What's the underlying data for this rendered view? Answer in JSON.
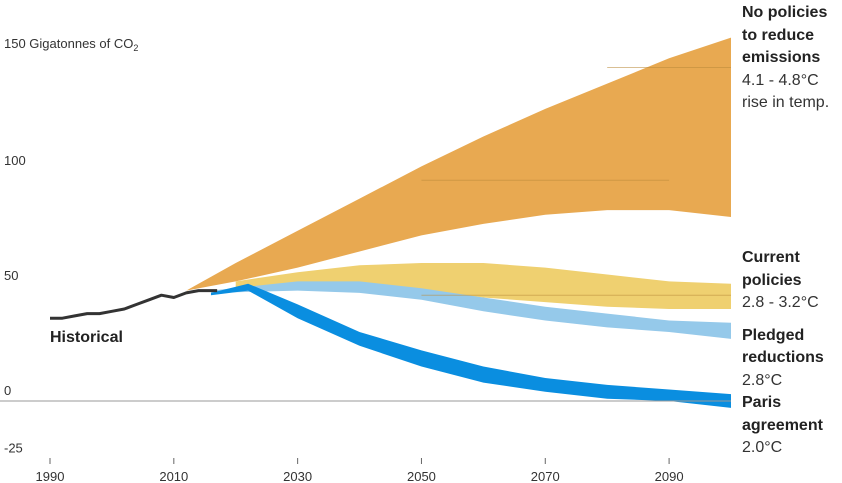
{
  "chart_data": {
    "type": "area",
    "ylabel_main": "150 Gigatonnes of CO",
    "ylabel_sub": "2",
    "x_ticks": [
      1990,
      2010,
      2030,
      2050,
      2070,
      2090
    ],
    "y_ticks": [
      {
        "value": 100,
        "label": "100"
      },
      {
        "value": 50,
        "label": "50"
      },
      {
        "value": 0,
        "label": "0"
      },
      {
        "value": -25,
        "label": "-25"
      }
    ],
    "xlim": [
      1990,
      2100
    ],
    "ylim": [
      -25,
      158
    ],
    "historical": {
      "name": "Historical",
      "color": "#333333",
      "points": [
        [
          1990,
          36
        ],
        [
          1992,
          36
        ],
        [
          1994,
          37
        ],
        [
          1996,
          38
        ],
        [
          1998,
          38
        ],
        [
          2000,
          39
        ],
        [
          2002,
          40
        ],
        [
          2004,
          42
        ],
        [
          2006,
          44
        ],
        [
          2008,
          46
        ],
        [
          2010,
          45
        ],
        [
          2012,
          47
        ],
        [
          2014,
          48
        ],
        [
          2017,
          48
        ]
      ]
    },
    "bands": [
      {
        "name": "No policies",
        "color": "#E8A951",
        "upper": [
          [
            2012,
            48
          ],
          [
            2020,
            60
          ],
          [
            2030,
            74
          ],
          [
            2040,
            88
          ],
          [
            2050,
            102
          ],
          [
            2060,
            115
          ],
          [
            2070,
            127
          ],
          [
            2080,
            138
          ],
          [
            2090,
            149
          ],
          [
            2100,
            158
          ]
        ],
        "lower": [
          [
            2012,
            48
          ],
          [
            2020,
            52
          ],
          [
            2030,
            58
          ],
          [
            2040,
            65
          ],
          [
            2050,
            72
          ],
          [
            2060,
            77
          ],
          [
            2070,
            81
          ],
          [
            2080,
            83
          ],
          [
            2090,
            83
          ],
          [
            2100,
            80
          ]
        ],
        "lines": [
          [
            2050,
            96
          ],
          [
            2090,
            96
          ],
          [
            2080,
            145
          ],
          [
            2100,
            145
          ]
        ]
      },
      {
        "name": "Current policies",
        "color": "#EFD070",
        "upper": [
          [
            2020,
            52
          ],
          [
            2030,
            56
          ],
          [
            2040,
            59
          ],
          [
            2050,
            60
          ],
          [
            2060,
            60
          ],
          [
            2070,
            58
          ],
          [
            2080,
            55
          ],
          [
            2090,
            52
          ],
          [
            2100,
            51
          ]
        ],
        "lower": [
          [
            2020,
            49
          ],
          [
            2030,
            50
          ],
          [
            2040,
            50
          ],
          [
            2050,
            48
          ],
          [
            2060,
            45
          ],
          [
            2070,
            43
          ],
          [
            2080,
            41
          ],
          [
            2090,
            40
          ],
          [
            2100,
            40
          ]
        ],
        "lines": [
          [
            2050,
            46
          ],
          [
            2100,
            46
          ]
        ]
      },
      {
        "name": "Pledged reductions",
        "color": "#95C9EA",
        "upper": [
          [
            2016,
            48
          ],
          [
            2030,
            52
          ],
          [
            2040,
            52
          ],
          [
            2050,
            49
          ],
          [
            2060,
            45
          ],
          [
            2070,
            41
          ],
          [
            2080,
            38
          ],
          [
            2090,
            35
          ],
          [
            2100,
            34
          ]
        ],
        "lower": [
          [
            2016,
            47
          ],
          [
            2030,
            48
          ],
          [
            2040,
            47
          ],
          [
            2050,
            44
          ],
          [
            2060,
            39
          ],
          [
            2070,
            35
          ],
          [
            2080,
            32
          ],
          [
            2090,
            30
          ],
          [
            2100,
            27
          ]
        ],
        "lines": []
      },
      {
        "name": "Paris agreement",
        "color": "#0A8EE0",
        "upper": [
          [
            2016,
            47
          ],
          [
            2022,
            51
          ],
          [
            2030,
            42
          ],
          [
            2040,
            30
          ],
          [
            2050,
            22
          ],
          [
            2060,
            15
          ],
          [
            2070,
            10
          ],
          [
            2080,
            7
          ],
          [
            2090,
            5
          ],
          [
            2100,
            3
          ]
        ],
        "lower": [
          [
            2016,
            46
          ],
          [
            2022,
            48
          ],
          [
            2030,
            36
          ],
          [
            2040,
            24
          ],
          [
            2050,
            15
          ],
          [
            2060,
            8
          ],
          [
            2070,
            4
          ],
          [
            2080,
            1
          ],
          [
            2090,
            0
          ],
          [
            2100,
            -3
          ]
        ],
        "lines": []
      }
    ],
    "labels": {
      "historical": "Historical",
      "no_policy": [
        "No policies",
        "to reduce",
        "emissions",
        "4.1 - 4.8°C",
        "rise in temp."
      ],
      "current": [
        "Current",
        "policies",
        "2.8 - 3.2°C"
      ],
      "pledged": [
        "Pledged",
        "reductions",
        "2.8°C"
      ],
      "paris": [
        "Paris",
        "agreement",
        "2.0°C"
      ]
    }
  }
}
